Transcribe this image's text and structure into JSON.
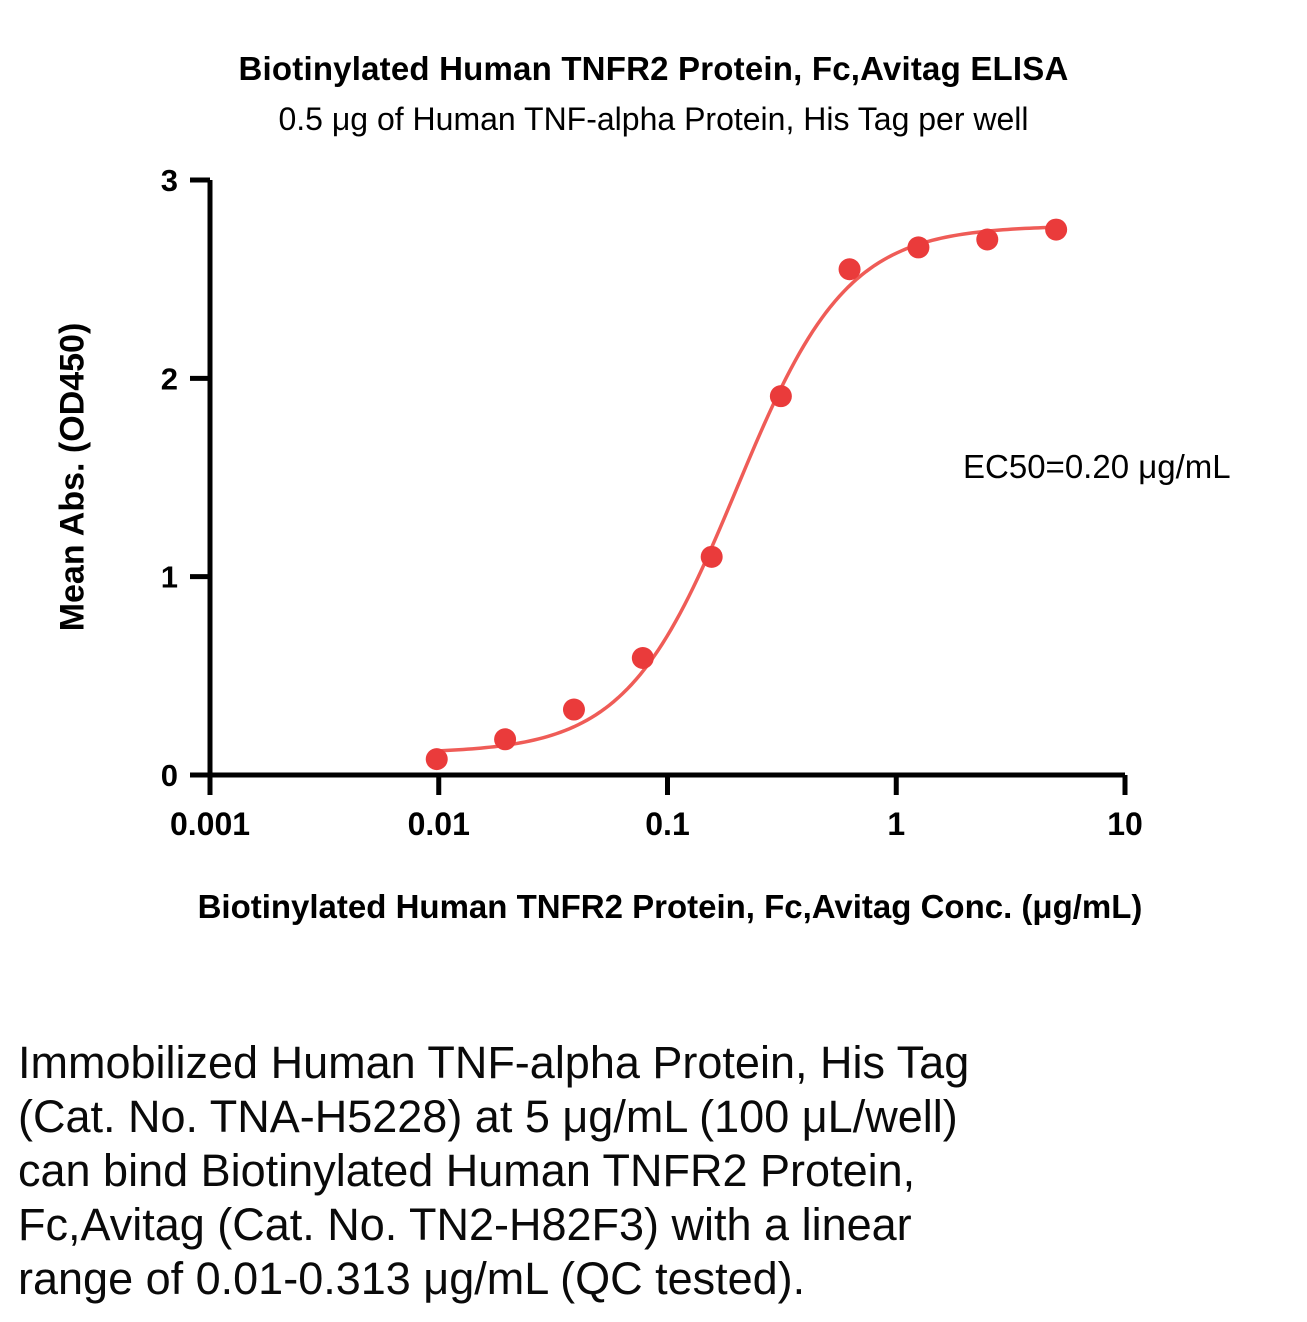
{
  "chart_data": {
    "type": "scatter",
    "title": "Biotinylated Human TNFR2 Protein, Fc,Avitag ELISA",
    "subtitle": "0.5 μg of Human TNF-alpha Protein, His Tag per well",
    "xlabel": "Biotinylated Human TNFR2 Protein, Fc,Avitag Conc. (μg/mL)",
    "ylabel": "Mean Abs. (OD450)",
    "annotation": "EC50=0.20 μg/mL",
    "x_scale": "log10",
    "xlim": [
      0.001,
      10
    ],
    "ylim": [
      0,
      3
    ],
    "grid": false,
    "legend": "none",
    "x_ticks": [
      {
        "value": 0.001,
        "label": "0.001"
      },
      {
        "value": 0.01,
        "label": "0.01"
      },
      {
        "value": 0.1,
        "label": "0.1"
      },
      {
        "value": 1,
        "label": "1"
      },
      {
        "value": 10,
        "label": "10"
      }
    ],
    "y_ticks": [
      {
        "value": 0,
        "label": "0"
      },
      {
        "value": 1,
        "label": "1"
      },
      {
        "value": 2,
        "label": "2"
      },
      {
        "value": 3,
        "label": "3"
      }
    ],
    "series": [
      {
        "name": "Biotinylated Human TNFR2 Protein, Fc,Avitag",
        "x": [
          0.0098,
          0.0195,
          0.039,
          0.078,
          0.156,
          0.313,
          0.625,
          1.25,
          2.5,
          5
        ],
        "y": [
          0.08,
          0.18,
          0.33,
          0.59,
          1.1,
          1.91,
          2.55,
          2.66,
          2.7,
          2.75
        ]
      }
    ],
    "fit": {
      "model": "4PL",
      "bottom": 0.11,
      "top": 2.77,
      "ec50": 0.2,
      "hill": 1.8,
      "range": [
        0.0098,
        5.0
      ]
    },
    "colors": {
      "points": "#ea3b3b",
      "curve": "#ef5c57",
      "axis": "#000000"
    }
  },
  "caption": {
    "lines": [
      "Immobilized Human TNF-alpha Protein, His Tag",
      "(Cat. No. TNA-H5228) at 5 μg/mL (100 μL/well)",
      "can bind Biotinylated Human TNFR2 Protein,",
      "Fc,Avitag (Cat. No. TN2-H82F3) with a linear",
      "range of 0.01-0.313 μg/mL (QC tested)."
    ]
  }
}
